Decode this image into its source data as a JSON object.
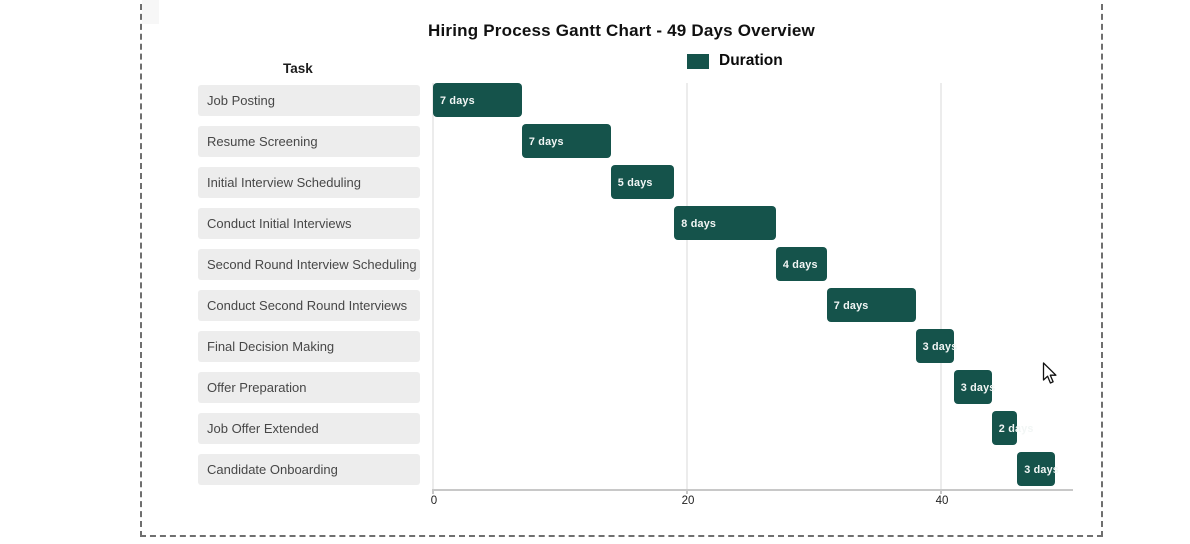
{
  "title": "Hiring Process Gantt Chart - 49 Days Overview",
  "task_header": "Task",
  "legend": {
    "label": "Duration",
    "swatch_color": "#15534B"
  },
  "chart_data": {
    "type": "bar",
    "subtype": "gantt",
    "title": "Hiring Process Gantt Chart - 49 Days Overview",
    "xlabel": "",
    "ylabel": "Task",
    "xlim": [
      0,
      50.4
    ],
    "xticks": [
      0,
      20,
      40
    ],
    "xtick_labels": [
      "0",
      "20",
      "40"
    ],
    "grid": "vertical",
    "legend_position": "top",
    "bar_color": "#15534B",
    "row_background_color": "#ededed",
    "total_days": 49,
    "series_name": "Duration",
    "tasks": [
      {
        "name": "Job Posting",
        "start": 0,
        "duration": 7,
        "label": "7 days"
      },
      {
        "name": "Resume Screening",
        "start": 7,
        "duration": 7,
        "label": "7 days"
      },
      {
        "name": "Initial Interview Scheduling",
        "start": 14,
        "duration": 5,
        "label": "5 days"
      },
      {
        "name": "Conduct Initial Interviews",
        "start": 19,
        "duration": 8,
        "label": "8 days"
      },
      {
        "name": "Second Round Interview Scheduling",
        "start": 27,
        "duration": 4,
        "label": "4 days"
      },
      {
        "name": "Conduct Second Round Interviews",
        "start": 31,
        "duration": 7,
        "label": "7 days"
      },
      {
        "name": "Final Decision Making",
        "start": 38,
        "duration": 3,
        "label": "3 days"
      },
      {
        "name": "Offer Preparation",
        "start": 41,
        "duration": 3,
        "label": "3 days"
      },
      {
        "name": "Job Offer Extended",
        "start": 44,
        "duration": 2,
        "label": "2 days"
      },
      {
        "name": "Candidate Onboarding",
        "start": 46,
        "duration": 3,
        "label": "3 days"
      }
    ]
  },
  "cursor": {
    "present": "true"
  }
}
